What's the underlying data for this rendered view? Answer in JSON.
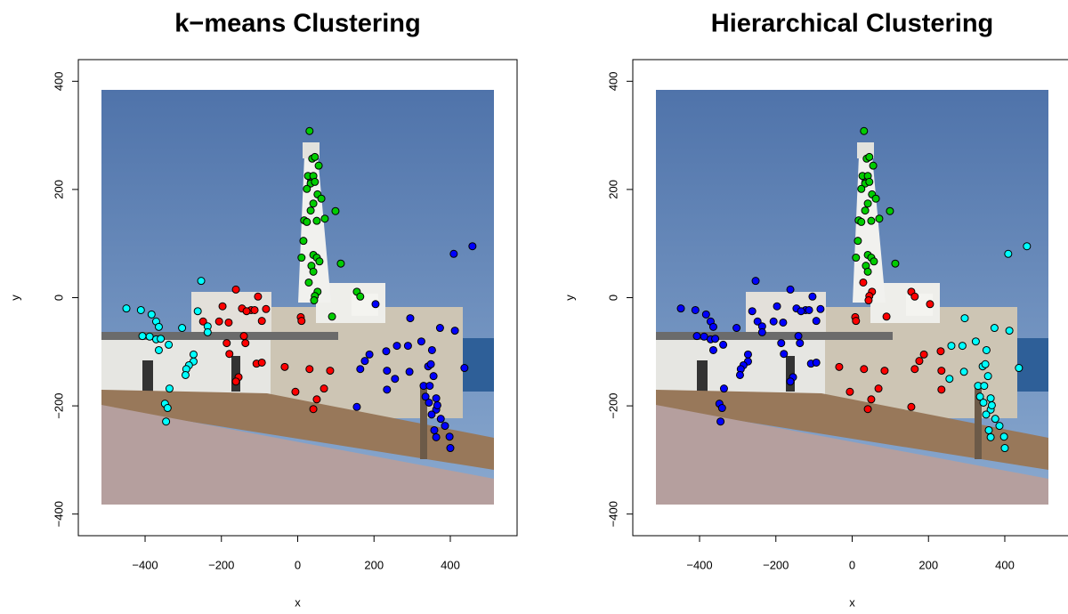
{
  "chart_data": [
    {
      "type": "scatter",
      "title": "k−means Clustering",
      "x_label": "x",
      "y_label": "y",
      "xlim": [
        -575,
        575
      ],
      "ylim": [
        -440,
        440
      ],
      "xticks": [
        {
          "value": -400,
          "label": "−400"
        },
        {
          "value": -200,
          "label": "−200"
        },
        0,
        200,
        400
      ],
      "yticks": [
        {
          "value": -400,
          "label": "−400"
        },
        {
          "value": -200,
          "label": "−200"
        },
        0,
        200,
        400
      ],
      "series": [
        {
          "color": "#00cd00",
          "x": [
            31,
            38,
            45,
            55,
            27,
            41,
            34,
            45,
            24,
            52,
            62,
            41,
            34,
            99,
            71,
            50,
            17,
            24,
            15,
            10,
            41,
            50,
            57,
            113,
            36,
            41,
            29,
            52,
            45,
            43,
            90,
            155,
            164
          ],
          "y": [
            308,
            257,
            260,
            244,
            225,
            225,
            211,
            214,
            201,
            191,
            183,
            174,
            161,
            160,
            146,
            142,
            143,
            140,
            105,
            74,
            79,
            74,
            67,
            63,
            59,
            48,
            28,
            11,
            3,
            -5,
            -35,
            11,
            2
          ]
        },
        {
          "color": "#ff0000",
          "x": [
            -162,
            -197,
            -248,
            -206,
            -146,
            -122,
            -104,
            -113,
            -83,
            -94,
            -141,
            -137,
            -186,
            -179,
            -108,
            -94,
            -155,
            -162,
            8,
            10,
            -34,
            31,
            85,
            -6,
            69,
            50,
            41,
            -134,
            -181
          ],
          "y": [
            15,
            -16,
            -44,
            -44,
            -20,
            -23,
            2,
            -23,
            -21,
            -43,
            -71,
            -84,
            -84,
            -104,
            -122,
            -120,
            -147,
            -155,
            -36,
            -43,
            -128,
            -132,
            -135,
            -174,
            -168,
            -188,
            -206,
            -25,
            -46
          ]
        },
        {
          "color": "#00ffff",
          "x": [
            -449,
            -411,
            -383,
            -371,
            -364,
            -407,
            -388,
            -371,
            -338,
            -364,
            -253,
            -262,
            -236,
            -236,
            -303,
            -273,
            -273,
            -285,
            -292,
            -294,
            -336,
            -348,
            -341,
            -345,
            -359
          ],
          "y": [
            -20,
            -23,
            -31,
            -44,
            -54,
            -71,
            -72,
            -77,
            -87,
            -97,
            31,
            -25,
            -53,
            -64,
            -56,
            -105,
            -118,
            -125,
            -132,
            -143,
            -168,
            -196,
            -204,
            -229,
            -76
          ]
        },
        {
          "color": "#0000ff",
          "x": [
            458,
            409,
            204,
            295,
            412,
            373,
            324,
            289,
            260,
            232,
            188,
            176,
            164,
            234,
            293,
            342,
            349,
            352,
            356,
            255,
            437,
            234,
            155,
            330,
            346,
            335,
            363,
            344,
            363,
            351,
            375,
            386,
            358,
            398,
            363,
            400,
            366
          ],
          "y": [
            95,
            81,
            -12,
            -38,
            -61,
            -56,
            -81,
            -89,
            -89,
            -99,
            -105,
            -117,
            -132,
            -135,
            -137,
            -127,
            -123,
            -97,
            -145,
            -150,
            -130,
            -170,
            -202,
            -163,
            -163,
            -183,
            -186,
            -194,
            -207,
            -216,
            -224,
            -237,
            -245,
            -257,
            -258,
            -278,
            -199
          ]
        }
      ]
    },
    {
      "type": "scatter",
      "title": "Hierarchical Clustering",
      "x_label": "x",
      "y_label": "y",
      "xlim": [
        -575,
        575
      ],
      "ylim": [
        -440,
        440
      ],
      "xticks": [
        {
          "value": -400,
          "label": "−400"
        },
        {
          "value": -200,
          "label": "−200"
        },
        0,
        200,
        400
      ],
      "yticks": [
        {
          "value": -400,
          "label": "−400"
        },
        {
          "value": -200,
          "label": "−200"
        },
        0,
        200,
        400
      ],
      "series": [
        {
          "color": "#00cd00",
          "x": [
            31,
            38,
            45,
            55,
            27,
            41,
            34,
            45,
            24,
            52,
            62,
            41,
            34,
            99,
            71,
            50,
            17,
            24,
            15,
            10,
            41,
            50,
            57,
            113,
            36,
            41
          ],
          "y": [
            308,
            257,
            260,
            244,
            225,
            225,
            211,
            214,
            201,
            191,
            183,
            174,
            161,
            160,
            146,
            142,
            143,
            140,
            105,
            74,
            79,
            74,
            67,
            63,
            59,
            48
          ]
        },
        {
          "color": "#ff0000",
          "x": [
            29,
            52,
            45,
            43,
            90,
            155,
            164,
            8,
            10,
            -34,
            31,
            85,
            -6,
            69,
            50,
            41,
            204,
            232,
            188,
            176,
            164,
            234,
            234,
            155
          ],
          "y": [
            28,
            11,
            3,
            -5,
            -35,
            11,
            2,
            -36,
            -43,
            -128,
            -132,
            -135,
            -174,
            -168,
            -188,
            -206,
            -12,
            -99,
            -105,
            -117,
            -132,
            -135,
            -170,
            -202
          ]
        },
        {
          "color": "#0000ff",
          "x": [
            -162,
            -197,
            -248,
            -206,
            -146,
            -122,
            -104,
            -113,
            -83,
            -94,
            -141,
            -137,
            -186,
            -179,
            -108,
            -94,
            -155,
            -162,
            -134,
            -181,
            -449,
            -411,
            -383,
            -371,
            -364,
            -407,
            -388,
            -371,
            -338,
            -364,
            -253,
            -262,
            -236,
            -236,
            -303,
            -273,
            -273,
            -285,
            -292,
            -294,
            -336,
            -348,
            -341,
            -345,
            -359
          ],
          "y": [
            15,
            -16,
            -44,
            -44,
            -20,
            -23,
            2,
            -23,
            -21,
            -43,
            -71,
            -84,
            -84,
            -104,
            -122,
            -120,
            -147,
            -155,
            -25,
            -46,
            -20,
            -23,
            -31,
            -44,
            -54,
            -71,
            -72,
            -77,
            -87,
            -97,
            31,
            -25,
            -53,
            -64,
            -56,
            -105,
            -118,
            -125,
            -132,
            -143,
            -168,
            -196,
            -204,
            -229,
            -76
          ]
        },
        {
          "color": "#00ffff",
          "x": [
            458,
            409,
            295,
            412,
            373,
            324,
            289,
            260,
            293,
            342,
            349,
            352,
            356,
            255,
            437,
            330,
            346,
            335,
            363,
            344,
            363,
            351,
            375,
            386,
            358,
            398,
            363,
            400,
            366
          ],
          "y": [
            95,
            81,
            -38,
            -61,
            -56,
            -81,
            -89,
            -89,
            -137,
            -127,
            -123,
            -97,
            -145,
            -150,
            -130,
            -163,
            -163,
            -183,
            -186,
            -194,
            -207,
            -216,
            -224,
            -237,
            -245,
            -257,
            -258,
            -278,
            -199
          ]
        }
      ]
    }
  ]
}
